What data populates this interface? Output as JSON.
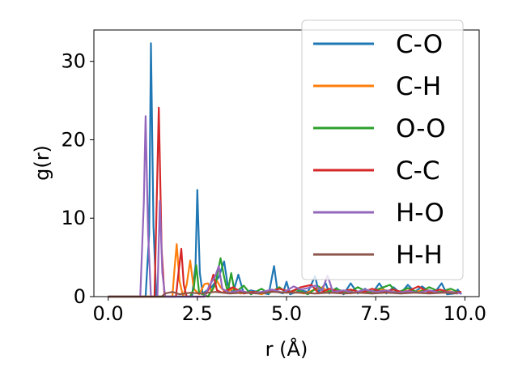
{
  "chart_data": {
    "type": "line",
    "title": "",
    "xlabel": "r (Å)",
    "ylabel": "g(r)",
    "xlim": [
      -0.4,
      10.4
    ],
    "ylim": [
      0,
      34
    ],
    "xticks": [
      0.0,
      2.5,
      5.0,
      7.5,
      10.0
    ],
    "xtick_labels": [
      "0.0",
      "2.5",
      "5.0",
      "7.5",
      "10.0"
    ],
    "yticks": [
      0,
      10,
      20,
      30
    ],
    "ytick_labels": [
      "0",
      "10",
      "20",
      "30"
    ],
    "grid": false,
    "legend": {
      "position": "top-right"
    },
    "series": [
      {
        "name": "C-O",
        "color": "#1f77b4",
        "points": [
          [
            0,
            0
          ],
          [
            1.05,
            0
          ],
          [
            1.15,
            8
          ],
          [
            1.2,
            32.3
          ],
          [
            1.27,
            9
          ],
          [
            1.35,
            0
          ],
          [
            2.35,
            0
          ],
          [
            2.45,
            4
          ],
          [
            2.5,
            13.6
          ],
          [
            2.57,
            3
          ],
          [
            2.65,
            0.4
          ],
          [
            2.9,
            1.2
          ],
          [
            3.1,
            2.5
          ],
          [
            3.25,
            4.5
          ],
          [
            3.35,
            1.5
          ],
          [
            3.5,
            0.5
          ],
          [
            3.65,
            2.8
          ],
          [
            3.8,
            0.4
          ],
          [
            4.0,
            0.8
          ],
          [
            4.3,
            0.5
          ],
          [
            4.5,
            0.3
          ],
          [
            4.65,
            3.9
          ],
          [
            4.75,
            0.6
          ],
          [
            4.9,
            0.4
          ],
          [
            5.0,
            1.9
          ],
          [
            5.1,
            0.3
          ],
          [
            5.4,
            0.8
          ],
          [
            5.6,
            0.6
          ],
          [
            5.8,
            2.6
          ],
          [
            5.9,
            0.6
          ],
          [
            6.1,
            1.7
          ],
          [
            6.2,
            0.4
          ],
          [
            6.4,
            1.1
          ],
          [
            6.6,
            0.3
          ],
          [
            6.8,
            1.7
          ],
          [
            7.0,
            0.4
          ],
          [
            7.2,
            1.0
          ],
          [
            7.4,
            0.4
          ],
          [
            7.6,
            1.7
          ],
          [
            7.8,
            0.4
          ],
          [
            8.0,
            1.2
          ],
          [
            8.2,
            0.4
          ],
          [
            8.4,
            1.5
          ],
          [
            8.6,
            0.6
          ],
          [
            8.8,
            1.3
          ],
          [
            9.0,
            0.6
          ],
          [
            9.2,
            0.8
          ],
          [
            9.35,
            1.7
          ],
          [
            9.5,
            0.3
          ],
          [
            9.7,
            0.4
          ],
          [
            9.8,
            0.9
          ],
          [
            9.9,
            0.3
          ]
        ]
      },
      {
        "name": "C-H",
        "color": "#ff7f0e",
        "points": [
          [
            0,
            0
          ],
          [
            1.8,
            0
          ],
          [
            1.85,
            3
          ],
          [
            1.92,
            6.7
          ],
          [
            2.0,
            2
          ],
          [
            2.1,
            0
          ],
          [
            2.2,
            1.5
          ],
          [
            2.3,
            4.6
          ],
          [
            2.4,
            1
          ],
          [
            2.55,
            0.3
          ],
          [
            2.7,
            1.6
          ],
          [
            2.8,
            1.7
          ],
          [
            2.9,
            0.6
          ],
          [
            3.05,
            2.0
          ],
          [
            3.15,
            1.2
          ],
          [
            3.3,
            0.5
          ],
          [
            3.5,
            1.0
          ],
          [
            3.7,
            0.4
          ],
          [
            4.0,
            0.6
          ],
          [
            4.3,
            0.3
          ],
          [
            4.6,
            0.8
          ],
          [
            4.9,
            0.5
          ],
          [
            5.2,
            0.6
          ],
          [
            5.5,
            0.4
          ],
          [
            5.8,
            0.9
          ],
          [
            6.0,
            1.2
          ],
          [
            6.2,
            0.5
          ],
          [
            6.5,
            0.8
          ],
          [
            6.8,
            0.4
          ],
          [
            7.1,
            0.7
          ],
          [
            7.4,
            0.5
          ],
          [
            7.7,
            0.9
          ],
          [
            8.0,
            0.5
          ],
          [
            8.3,
            0.8
          ],
          [
            8.6,
            0.6
          ],
          [
            8.9,
            0.9
          ],
          [
            9.2,
            0.5
          ],
          [
            9.5,
            0.8
          ],
          [
            9.8,
            0.4
          ]
        ]
      },
      {
        "name": "O-O",
        "color": "#2ca02c",
        "points": [
          [
            0,
            0
          ],
          [
            2.3,
            0
          ],
          [
            2.4,
            1
          ],
          [
            2.47,
            4.0
          ],
          [
            2.55,
            0.5
          ],
          [
            2.8,
            0
          ],
          [
            3.0,
            1.5
          ],
          [
            3.15,
            4.9
          ],
          [
            3.25,
            2.5
          ],
          [
            3.35,
            0.6
          ],
          [
            3.45,
            3.0
          ],
          [
            3.55,
            0.5
          ],
          [
            3.8,
            1.4
          ],
          [
            4.0,
            0.3
          ],
          [
            4.3,
            1.0
          ],
          [
            4.5,
            0.4
          ],
          [
            4.8,
            1.2
          ],
          [
            5.0,
            0.5
          ],
          [
            5.3,
            0.9
          ],
          [
            5.6,
            0.3
          ],
          [
            5.9,
            1.3
          ],
          [
            6.1,
            0.5
          ],
          [
            6.4,
            1.0
          ],
          [
            6.7,
            0.4
          ],
          [
            7.0,
            1.2
          ],
          [
            7.3,
            0.5
          ],
          [
            7.6,
            1.0
          ],
          [
            7.9,
            1.5
          ],
          [
            8.1,
            0.5
          ],
          [
            8.4,
            1.1
          ],
          [
            8.7,
            0.5
          ],
          [
            9.0,
            1.2
          ],
          [
            9.3,
            0.6
          ],
          [
            9.6,
            1.0
          ],
          [
            9.9,
            0.4
          ]
        ]
      },
      {
        "name": "C-C",
        "color": "#d62728",
        "points": [
          [
            0,
            0
          ],
          [
            1.3,
            0
          ],
          [
            1.36,
            12
          ],
          [
            1.42,
            24.1
          ],
          [
            1.5,
            6
          ],
          [
            1.58,
            0
          ],
          [
            1.9,
            0
          ],
          [
            1.97,
            3
          ],
          [
            2.05,
            6.1
          ],
          [
            2.12,
            1.5
          ],
          [
            2.2,
            0
          ],
          [
            2.7,
            0
          ],
          [
            2.85,
            1.2
          ],
          [
            2.95,
            2.8
          ],
          [
            3.05,
            0.8
          ],
          [
            3.2,
            0.5
          ],
          [
            3.5,
            1.2
          ],
          [
            3.8,
            0.4
          ],
          [
            4.1,
            0.6
          ],
          [
            4.4,
            0.5
          ],
          [
            4.8,
            1.0
          ],
          [
            5.1,
            0.6
          ],
          [
            5.4,
            1.2
          ],
          [
            5.7,
            1.5
          ],
          [
            5.9,
            0.4
          ],
          [
            6.2,
            1.0
          ],
          [
            6.5,
            0.6
          ],
          [
            6.8,
            0.9
          ],
          [
            7.1,
            0.5
          ],
          [
            7.4,
            1.0
          ],
          [
            7.7,
            0.6
          ],
          [
            8.0,
            0.9
          ],
          [
            8.3,
            0.5
          ],
          [
            8.7,
            1.3
          ],
          [
            9.0,
            0.5
          ],
          [
            9.3,
            0.9
          ],
          [
            9.6,
            0.5
          ],
          [
            9.9,
            0.6
          ]
        ]
      },
      {
        "name": "H-O",
        "color": "#9467bd",
        "points": [
          [
            0,
            0
          ],
          [
            0.9,
            0
          ],
          [
            1.0,
            12
          ],
          [
            1.05,
            23.0
          ],
          [
            1.12,
            8
          ],
          [
            1.2,
            0
          ],
          [
            1.38,
            0
          ],
          [
            1.45,
            12.2
          ],
          [
            1.52,
            3
          ],
          [
            1.6,
            0
          ],
          [
            2.7,
            0
          ],
          [
            2.85,
            1.5
          ],
          [
            3.0,
            2.6
          ],
          [
            3.1,
            3.9
          ],
          [
            3.2,
            1.0
          ],
          [
            3.4,
            0.5
          ],
          [
            3.7,
            0.8
          ],
          [
            4.0,
            0.4
          ],
          [
            4.3,
            0.6
          ],
          [
            4.6,
            0.9
          ],
          [
            4.9,
            0.5
          ],
          [
            5.2,
            1.3
          ],
          [
            5.4,
            0.9
          ],
          [
            5.6,
            1.1
          ],
          [
            5.8,
            1.4
          ],
          [
            6.0,
            0.8
          ],
          [
            6.15,
            2.7
          ],
          [
            6.3,
            0.6
          ],
          [
            6.6,
            0.8
          ],
          [
            6.9,
            0.5
          ],
          [
            7.2,
            0.9
          ],
          [
            7.5,
            0.6
          ],
          [
            7.8,
            0.8
          ],
          [
            8.1,
            0.5
          ],
          [
            8.4,
            0.7
          ],
          [
            8.7,
            0.5
          ],
          [
            9.0,
            0.8
          ],
          [
            9.3,
            0.5
          ],
          [
            9.6,
            0.6
          ],
          [
            9.9,
            0.4
          ]
        ]
      },
      {
        "name": "H-H",
        "color": "#8c564b",
        "points": [
          [
            0,
            0
          ],
          [
            1.5,
            0
          ],
          [
            1.6,
            0.4
          ],
          [
            1.8,
            0.6
          ],
          [
            2.0,
            0.3
          ],
          [
            2.3,
            0.5
          ],
          [
            2.6,
            0.4
          ],
          [
            3.0,
            0.6
          ],
          [
            3.4,
            0.4
          ],
          [
            3.8,
            0.5
          ],
          [
            4.2,
            0.4
          ],
          [
            4.6,
            0.6
          ],
          [
            5.0,
            0.5
          ],
          [
            5.4,
            0.5
          ],
          [
            5.8,
            0.4
          ],
          [
            6.2,
            0.5
          ],
          [
            6.6,
            0.4
          ],
          [
            7.0,
            0.5
          ],
          [
            7.4,
            0.4
          ],
          [
            7.8,
            0.5
          ],
          [
            8.2,
            0.4
          ],
          [
            8.6,
            0.5
          ],
          [
            9.0,
            0.4
          ],
          [
            9.4,
            0.5
          ],
          [
            9.8,
            0.4
          ]
        ]
      }
    ]
  }
}
